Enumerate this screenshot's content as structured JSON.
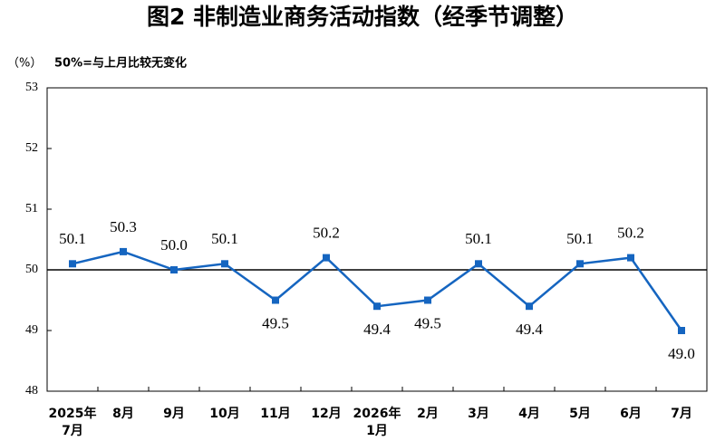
{
  "chart_data": {
    "type": "line",
    "title": "图2 非制造业商务活动指数（经季节调整）",
    "y_label": "（%）",
    "annotation": "50%=与上月比较无变化",
    "categories": [
      "2025年\n7月",
      "8月",
      "9月",
      "10月",
      "11月",
      "12月",
      "2026年\n1月",
      "2月",
      "3月",
      "4月",
      "5月",
      "6月",
      "7月"
    ],
    "series": [
      {
        "color": "#1565c0",
        "values": [
          50.1,
          50.3,
          50.0,
          50.1,
          49.5,
          50.2,
          49.4,
          49.5,
          50.1,
          49.4,
          50.1,
          50.2,
          49.0
        ],
        "value_labels": [
          "50.1",
          "50.3",
          "50.0",
          "50.1",
          "49.5",
          "50.2",
          "49.4",
          "49.5",
          "50.1",
          "49.4",
          "50.1",
          "50.2",
          "49.0"
        ]
      }
    ],
    "ylim": [
      48,
      53
    ],
    "yticks": [
      48,
      49,
      50,
      51,
      52,
      53
    ],
    "reference_line": 50
  }
}
